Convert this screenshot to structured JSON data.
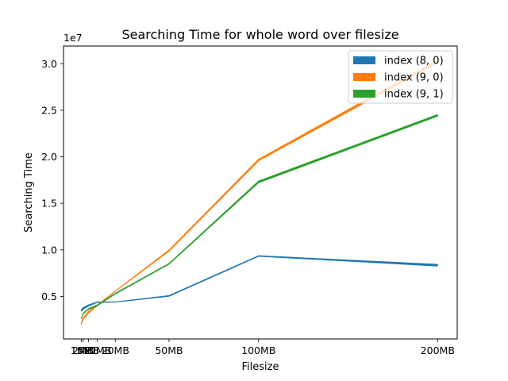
{
  "chart_data": {
    "type": "area",
    "title": "Searching Time for whole word over filesize",
    "xlabel": "Filesize",
    "ylabel": "Searching Time",
    "y_offset_label": "1e7",
    "x": [
      1,
      2,
      5,
      10,
      20,
      50,
      100,
      200
    ],
    "xtick_values": [
      1,
      2,
      5,
      10,
      20,
      50,
      100,
      200
    ],
    "xtick_labels": [
      "1MB",
      "2MB",
      "5MB",
      "10MB",
      "20MB",
      "50MB",
      "100MB",
      "200MB"
    ],
    "xlim": [
      -8.95,
      210.95
    ],
    "ylim": [
      430000,
      31900000
    ],
    "ytick_values": [
      5000000,
      10000000,
      15000000,
      20000000,
      25000000,
      30000000
    ],
    "ytick_labels": [
      "0.5",
      "1.0",
      "1.5",
      "2.0",
      "2.5",
      "3.0"
    ],
    "legend_position": "upper right",
    "series": [
      {
        "name": "index (8, 0)",
        "color": "#1f77b4",
        "lower": [
          3400000,
          3600000,
          3950000,
          4350000,
          4380000,
          5000000,
          9300000,
          8250000
        ],
        "upper": [
          3600000,
          3800000,
          4100000,
          4420000,
          4420000,
          5100000,
          9380000,
          8450000
        ]
      },
      {
        "name": "index (9, 0)",
        "color": "#ff7f0e",
        "lower": [
          2000000,
          2500000,
          3200000,
          4000000,
          5550000,
          9850000,
          19550000,
          30100000
        ],
        "upper": [
          2200000,
          2700000,
          3400000,
          4100000,
          5600000,
          10000000,
          19750000,
          30400000
        ]
      },
      {
        "name": "index (9, 1)",
        "color": "#2ca02c",
        "lower": [
          2600000,
          3100000,
          3600000,
          4000000,
          5250000,
          8450000,
          17200000,
          24350000
        ],
        "upper": [
          2700000,
          3200000,
          3700000,
          4100000,
          5350000,
          8550000,
          17400000,
          24550000
        ]
      }
    ]
  }
}
